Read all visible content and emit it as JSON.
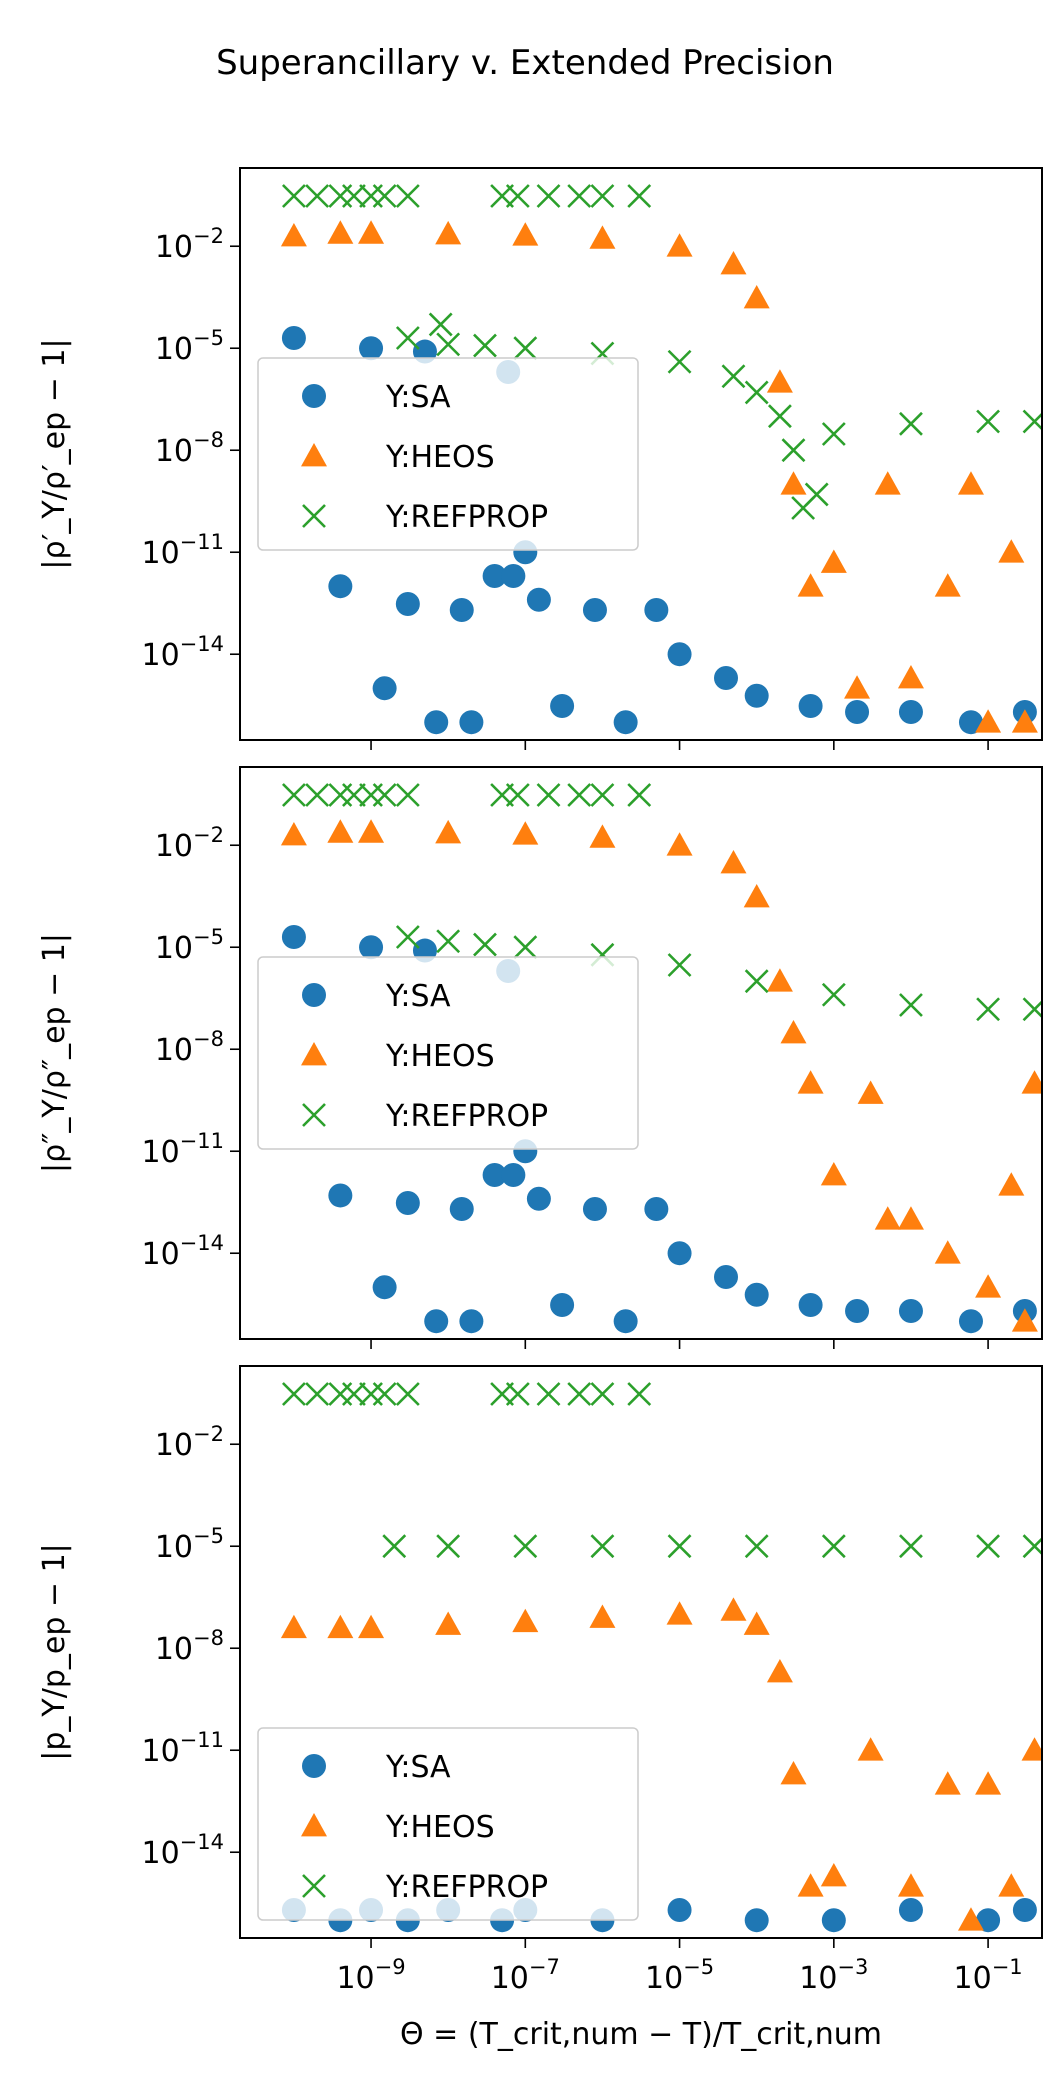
{
  "figure": {
    "title": "Superancillary v. Extended Precision"
  },
  "chart_data": [
    {
      "type": "scatter",
      "ylabel": "|ρ′_Y/ρ′_ep − 1|",
      "xlabel": "",
      "xscale": "log",
      "yscale": "log",
      "xlim": [
        2e-11,
        0.5
      ],
      "ylim": [
        3e-17,
        2.0
      ],
      "x_ticks": [
        "10^-9",
        "10^-7",
        "10^-5",
        "10^-3",
        "10^-1"
      ],
      "y_ticks": [
        "10^-2",
        "10^-5",
        "10^-8",
        "10^-11",
        "10^-14"
      ],
      "legend": {
        "placement": "center-left",
        "entries": [
          "Y:SA",
          "Y:HEOS",
          "Y:REFPROP"
        ]
      },
      "series": [
        {
          "name": "Y:SA",
          "color": "#1f77b4",
          "marker": "circle",
          "points": [
            [
              1e-10,
              2e-05
            ],
            [
              4e-10,
              1e-12
            ],
            [
              1e-09,
              1e-05
            ],
            [
              1.5e-09,
              1e-15
            ],
            [
              3e-09,
              3e-13
            ],
            [
              5e-09,
              8e-06
            ],
            [
              7e-09,
              1e-16
            ],
            [
              1.5e-08,
              2e-13
            ],
            [
              2e-08,
              1e-16
            ],
            [
              4e-08,
              2e-12
            ],
            [
              6e-08,
              2e-06
            ],
            [
              7e-08,
              2e-12
            ],
            [
              1e-07,
              1e-11
            ],
            [
              1.5e-07,
              4e-13
            ],
            [
              3e-07,
              3e-16
            ],
            [
              8e-07,
              2e-13
            ],
            [
              2e-06,
              1e-16
            ],
            [
              5e-06,
              2e-13
            ],
            [
              1e-05,
              1e-14
            ],
            [
              4e-05,
              2e-15
            ],
            [
              0.0001,
              6e-16
            ],
            [
              0.0005,
              3e-16
            ],
            [
              0.002,
              2e-16
            ],
            [
              0.01,
              2e-16
            ],
            [
              0.06,
              1e-16
            ],
            [
              0.3,
              2e-16
            ]
          ]
        },
        {
          "name": "Y:HEOS",
          "color": "#ff7f0e",
          "marker": "triangle",
          "points": [
            [
              1e-10,
              0.02
            ],
            [
              4e-10,
              0.024
            ],
            [
              1e-09,
              0.024
            ],
            [
              1e-08,
              0.023
            ],
            [
              1e-07,
              0.021
            ],
            [
              1e-06,
              0.017
            ],
            [
              1e-05,
              0.01
            ],
            [
              5e-05,
              0.003
            ],
            [
              0.0001,
              0.0003
            ],
            [
              0.0002,
              1e-06
            ],
            [
              0.0003,
              1e-09
            ],
            [
              0.0005,
              1e-12
            ],
            [
              0.001,
              5e-12
            ],
            [
              0.002,
              1e-15
            ],
            [
              0.005,
              1e-09
            ],
            [
              0.01,
              2e-15
            ],
            [
              0.03,
              1e-12
            ],
            [
              0.06,
              1e-09
            ],
            [
              0.1,
              1e-16
            ],
            [
              0.2,
              1e-11
            ],
            [
              0.3,
              1e-16
            ]
          ]
        },
        {
          "name": "Y:REFPROP",
          "color": "#2ca02c",
          "marker": "x",
          "points": [
            [
              1e-10,
              0.3
            ],
            [
              2e-10,
              0.3
            ],
            [
              4e-10,
              0.3
            ],
            [
              6e-10,
              0.3
            ],
            [
              1e-09,
              0.3
            ],
            [
              1.5e-09,
              0.3
            ],
            [
              3e-09,
              0.3
            ],
            [
              5e-08,
              0.3
            ],
            [
              8e-08,
              0.3
            ],
            [
              2e-07,
              0.3
            ],
            [
              5e-07,
              0.3
            ],
            [
              1e-06,
              0.3
            ],
            [
              3e-06,
              0.3
            ],
            [
              3e-09,
              2e-05
            ],
            [
              8e-09,
              5e-05
            ],
            [
              1e-08,
              1.3e-05
            ],
            [
              3e-08,
              1.2e-05
            ],
            [
              1e-07,
              1e-05
            ],
            [
              1e-06,
              7e-06
            ],
            [
              1e-05,
              4e-06
            ],
            [
              5e-05,
              1.5e-06
            ],
            [
              0.0001,
              5e-07
            ],
            [
              0.0002,
              1e-07
            ],
            [
              0.0003,
              1e-08
            ],
            [
              0.0004,
              2e-10
            ],
            [
              0.0006,
              5e-10
            ],
            [
              0.001,
              3e-08
            ],
            [
              0.01,
              6e-08
            ],
            [
              0.1,
              7e-08
            ],
            [
              0.4,
              7e-08
            ]
          ]
        }
      ]
    },
    {
      "type": "scatter",
      "ylabel": "|ρ″_Y/ρ″_ep − 1|",
      "xlabel": "",
      "xscale": "log",
      "yscale": "log",
      "xlim": [
        2e-11,
        0.5
      ],
      "ylim": [
        3e-17,
        2.0
      ],
      "x_ticks": [
        "10^-9",
        "10^-7",
        "10^-5",
        "10^-3",
        "10^-1"
      ],
      "y_ticks": [
        "10^-2",
        "10^-5",
        "10^-8",
        "10^-11",
        "10^-14"
      ],
      "legend": {
        "placement": "center-left",
        "entries": [
          "Y:SA",
          "Y:HEOS",
          "Y:REFPROP"
        ]
      },
      "series": [
        {
          "name": "Y:SA",
          "color": "#1f77b4",
          "marker": "circle",
          "points": [
            [
              1e-10,
              2e-05
            ],
            [
              4e-10,
              5e-13
            ],
            [
              1e-09,
              1e-05
            ],
            [
              1.5e-09,
              1e-15
            ],
            [
              3e-09,
              3e-13
            ],
            [
              5e-09,
              8e-06
            ],
            [
              7e-09,
              1e-16
            ],
            [
              1.5e-08,
              2e-13
            ],
            [
              2e-08,
              1e-16
            ],
            [
              4e-08,
              2e-12
            ],
            [
              6e-08,
              2e-06
            ],
            [
              7e-08,
              2e-12
            ],
            [
              1e-07,
              1e-11
            ],
            [
              1.5e-07,
              4e-13
            ],
            [
              3e-07,
              3e-16
            ],
            [
              8e-07,
              2e-13
            ],
            [
              2e-06,
              1e-16
            ],
            [
              5e-06,
              2e-13
            ],
            [
              1e-05,
              1e-14
            ],
            [
              4e-05,
              2e-15
            ],
            [
              0.0001,
              6e-16
            ],
            [
              0.0005,
              3e-16
            ],
            [
              0.002,
              2e-16
            ],
            [
              0.01,
              2e-16
            ],
            [
              0.06,
              1e-16
            ],
            [
              0.3,
              2e-16
            ]
          ]
        },
        {
          "name": "Y:HEOS",
          "color": "#ff7f0e",
          "marker": "triangle",
          "points": [
            [
              1e-10,
              0.02
            ],
            [
              4e-10,
              0.024
            ],
            [
              1e-09,
              0.024
            ],
            [
              1e-08,
              0.023
            ],
            [
              1e-07,
              0.021
            ],
            [
              1e-06,
              0.017
            ],
            [
              1e-05,
              0.01
            ],
            [
              5e-05,
              0.003
            ],
            [
              0.0001,
              0.0003
            ],
            [
              0.0002,
              1e-06
            ],
            [
              0.0003,
              3e-08
            ],
            [
              0.0005,
              1e-09
            ],
            [
              0.001,
              2e-12
            ],
            [
              0.003,
              5e-10
            ],
            [
              0.005,
              1e-13
            ],
            [
              0.01,
              1e-13
            ],
            [
              0.03,
              1e-14
            ],
            [
              0.1,
              1e-15
            ],
            [
              0.2,
              1e-12
            ],
            [
              0.3,
              1e-16
            ],
            [
              0.4,
              1e-09
            ]
          ]
        },
        {
          "name": "Y:REFPROP",
          "color": "#2ca02c",
          "marker": "x",
          "points": [
            [
              1e-10,
              0.3
            ],
            [
              2e-10,
              0.3
            ],
            [
              4e-10,
              0.3
            ],
            [
              6e-10,
              0.3
            ],
            [
              1e-09,
              0.3
            ],
            [
              1.5e-09,
              0.3
            ],
            [
              3e-09,
              0.3
            ],
            [
              5e-08,
              0.3
            ],
            [
              8e-08,
              0.3
            ],
            [
              2e-07,
              0.3
            ],
            [
              5e-07,
              0.3
            ],
            [
              1e-06,
              0.3
            ],
            [
              3e-06,
              0.3
            ],
            [
              3e-09,
              2e-05
            ],
            [
              1e-08,
              1.5e-05
            ],
            [
              3e-08,
              1.2e-05
            ],
            [
              1e-07,
              1e-05
            ],
            [
              1e-06,
              6e-06
            ],
            [
              1e-05,
              3e-06
            ],
            [
              0.0001,
              1e-06
            ],
            [
              0.001,
              4e-07
            ],
            [
              0.01,
              2e-07
            ],
            [
              0.1,
              1.5e-07
            ],
            [
              0.4,
              1.5e-07
            ]
          ]
        }
      ]
    },
    {
      "type": "scatter",
      "ylabel": "|p_Y/p_ep − 1|",
      "xlabel": "Θ = (T_crit,num − T)/T_crit,num",
      "xscale": "log",
      "yscale": "log",
      "xlim": [
        2e-11,
        0.5
      ],
      "ylim": [
        3e-17,
        2.0
      ],
      "x_ticks": [
        "10^-9",
        "10^-7",
        "10^-5",
        "10^-3",
        "10^-1"
      ],
      "y_ticks": [
        "10^-2",
        "10^-5",
        "10^-8",
        "10^-11",
        "10^-14"
      ],
      "legend": {
        "placement": "lower-left",
        "entries": [
          "Y:SA",
          "Y:HEOS",
          "Y:REFPROP"
        ]
      },
      "series": [
        {
          "name": "Y:SA",
          "color": "#1f77b4",
          "marker": "circle",
          "points": [
            [
              1e-10,
              2e-16
            ],
            [
              4e-10,
              1e-16
            ],
            [
              1e-09,
              2e-16
            ],
            [
              3e-09,
              1e-16
            ],
            [
              1e-08,
              2e-16
            ],
            [
              5e-08,
              1e-16
            ],
            [
              1e-07,
              2e-16
            ],
            [
              1e-06,
              1e-16
            ],
            [
              1e-05,
              2e-16
            ],
            [
              0.0001,
              1e-16
            ],
            [
              0.001,
              1e-16
            ],
            [
              0.01,
              2e-16
            ],
            [
              0.1,
              1e-16
            ],
            [
              0.3,
              2e-16
            ]
          ]
        },
        {
          "name": "Y:HEOS",
          "color": "#ff7f0e",
          "marker": "triangle",
          "points": [
            [
              1e-10,
              4e-08
            ],
            [
              4e-10,
              4e-08
            ],
            [
              1e-09,
              4e-08
            ],
            [
              1e-08,
              5e-08
            ],
            [
              1e-07,
              6e-08
            ],
            [
              1e-06,
              8e-08
            ],
            [
              1e-05,
              1e-07
            ],
            [
              5e-05,
              1.3e-07
            ],
            [
              0.0001,
              5e-08
            ],
            [
              0.0002,
              2e-09
            ],
            [
              0.0003,
              2e-12
            ],
            [
              0.0005,
              1e-15
            ],
            [
              0.001,
              2e-15
            ],
            [
              0.003,
              1e-11
            ],
            [
              0.01,
              1e-15
            ],
            [
              0.03,
              1e-12
            ],
            [
              0.06,
              1e-16
            ],
            [
              0.1,
              1e-12
            ],
            [
              0.2,
              1e-15
            ],
            [
              0.4,
              1e-11
            ]
          ]
        },
        {
          "name": "Y:REFPROP",
          "color": "#2ca02c",
          "marker": "x",
          "points": [
            [
              1e-10,
              0.3
            ],
            [
              2e-10,
              0.3
            ],
            [
              4e-10,
              0.3
            ],
            [
              6e-10,
              0.3
            ],
            [
              1e-09,
              0.3
            ],
            [
              1.5e-09,
              0.3
            ],
            [
              3e-09,
              0.3
            ],
            [
              5e-08,
              0.3
            ],
            [
              8e-08,
              0.3
            ],
            [
              2e-07,
              0.3
            ],
            [
              5e-07,
              0.3
            ],
            [
              1e-06,
              0.3
            ],
            [
              3e-06,
              0.3
            ],
            [
              2e-09,
              1e-05
            ],
            [
              1e-08,
              1e-05
            ],
            [
              1e-07,
              1e-05
            ],
            [
              1e-06,
              1e-05
            ],
            [
              1e-05,
              1e-05
            ],
            [
              0.0001,
              1e-05
            ],
            [
              0.001,
              1e-05
            ],
            [
              0.01,
              1e-05
            ],
            [
              0.1,
              1e-05
            ],
            [
              0.4,
              1e-05
            ]
          ]
        }
      ]
    }
  ]
}
